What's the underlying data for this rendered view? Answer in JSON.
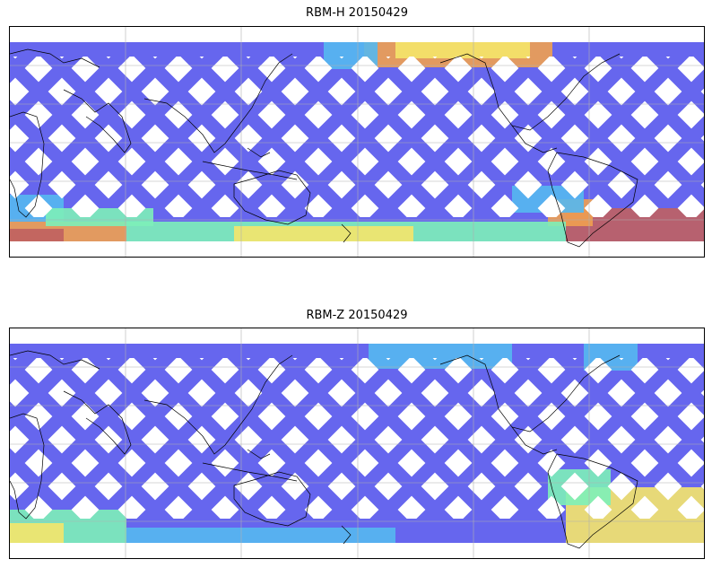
{
  "panels": [
    {
      "title": "RBM-H 20150429",
      "mode": "hot"
    },
    {
      "title": "RBM-Z 20150429",
      "mode": "cool"
    }
  ],
  "colors": {
    "low": "#6666ee",
    "mid_low": "#55b8f0",
    "mid": "#7df0b8",
    "mid_high": "#f5e66a",
    "high": "#f0a050",
    "max": "#c06060",
    "coast": "#000000",
    "grid": "#b0b0b0"
  }
}
